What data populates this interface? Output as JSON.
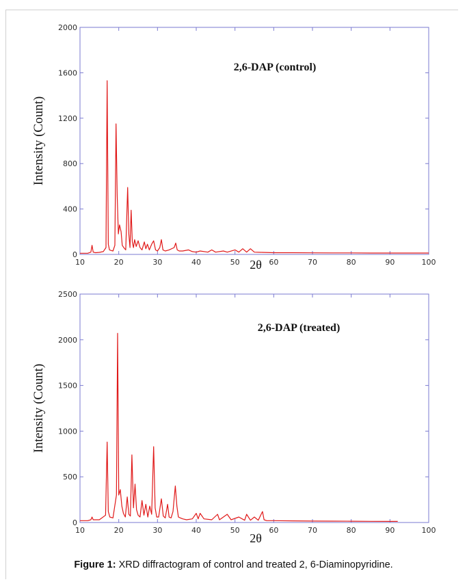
{
  "caption": {
    "label": "Figure 1:",
    "text": " XRD diffractogram of control and treated 2, 6-Diaminopyridine."
  },
  "colors": {
    "series": "#e01818",
    "axis": "#7a7ad0"
  },
  "chart_data": [
    {
      "type": "line",
      "title": "2,6-DAP (control)",
      "xlabel": "2θ",
      "ylabel": "Intensity (Count)",
      "xlim": [
        10,
        100
      ],
      "ylim": [
        0,
        2000
      ],
      "xticks": [
        10,
        20,
        30,
        40,
        50,
        60,
        70,
        80,
        90,
        100
      ],
      "yticks": [
        0,
        400,
        800,
        1200,
        1600,
        2000
      ],
      "grid": false,
      "series": [
        {
          "x": [
            10,
            12,
            12.8,
            13.1,
            13.4,
            14,
            15,
            16,
            16.7,
            17.0,
            17.3,
            17.6,
            18,
            18.5,
            19.0,
            19.3,
            19.6,
            19.9,
            20.2,
            20.6,
            20.9,
            21.3,
            21.8,
            22.3,
            22.6,
            22.9,
            23.2,
            23.5,
            23.8,
            24.1,
            24.5,
            25.0,
            25.5,
            26.0,
            26.6,
            27.0,
            27.4,
            27.9,
            28.5,
            29.0,
            29.5,
            30.0,
            30.6,
            31.0,
            31.4,
            32,
            33,
            34.3,
            34.7,
            35.1,
            35.6,
            36.5,
            38,
            39,
            40,
            41,
            43,
            44,
            45,
            47,
            48,
            50,
            51,
            52,
            53,
            54,
            55,
            57,
            60,
            65,
            70,
            75,
            80,
            85,
            90,
            95,
            100
          ],
          "y": [
            10,
            10,
            20,
            80,
            20,
            15,
            18,
            25,
            60,
            1530,
            90,
            40,
            35,
            30,
            80,
            1150,
            520,
            180,
            260,
            200,
            80,
            60,
            40,
            590,
            180,
            60,
            390,
            110,
            60,
            130,
            70,
            120,
            60,
            40,
            110,
            50,
            90,
            40,
            90,
            120,
            40,
            30,
            60,
            130,
            40,
            30,
            40,
            60,
            100,
            40,
            30,
            30,
            40,
            25,
            20,
            30,
            20,
            40,
            20,
            30,
            20,
            40,
            20,
            50,
            20,
            50,
            20,
            18,
            15,
            15,
            14,
            13,
            13,
            12,
            12,
            12,
            12
          ]
        }
      ]
    },
    {
      "type": "line",
      "title": "2,6-DAP (treated)",
      "xlabel": "2θ",
      "ylabel": "Intensity (Count)",
      "xlim": [
        10,
        100
      ],
      "ylim": [
        0,
        2500
      ],
      "xticks": [
        10,
        20,
        30,
        40,
        50,
        60,
        70,
        80,
        90,
        100
      ],
      "yticks": [
        0,
        500,
        1000,
        1500,
        2000,
        2500
      ],
      "grid": false,
      "series": [
        {
          "x": [
            10,
            12,
            12.8,
            13.1,
            13.4,
            15,
            16.6,
            17.0,
            17.3,
            17.7,
            18.5,
            19.4,
            19.7,
            20.0,
            20.4,
            20.8,
            21.2,
            21.7,
            22.2,
            22.6,
            23.0,
            23.4,
            23.8,
            24.2,
            24.6,
            25.0,
            25.5,
            26.0,
            26.5,
            27.0,
            27.5,
            28.0,
            28.5,
            29.0,
            29.4,
            29.8,
            30.3,
            31.0,
            31.5,
            32.0,
            32.6,
            33.0,
            33.5,
            34.0,
            34.6,
            35.0,
            35.4,
            35.9,
            36.5,
            37.5,
            39,
            40,
            40.5,
            41,
            42,
            44,
            45.5,
            46,
            47,
            48,
            49,
            51,
            52.5,
            53,
            54,
            55,
            56,
            57.1,
            57.5,
            58.2,
            60,
            65,
            70,
            75,
            80,
            85,
            90,
            92
          ],
          "y": [
            20,
            20,
            30,
            60,
            30,
            30,
            80,
            880,
            120,
            60,
            50,
            300,
            2070,
            300,
            360,
            180,
            100,
            60,
            280,
            90,
            70,
            740,
            160,
            420,
            140,
            80,
            60,
            240,
            80,
            200,
            60,
            180,
            90,
            830,
            160,
            60,
            60,
            260,
            70,
            50,
            200,
            60,
            50,
            120,
            400,
            180,
            60,
            50,
            40,
            30,
            40,
            100,
            40,
            100,
            40,
            30,
            90,
            30,
            60,
            90,
            30,
            60,
            25,
            90,
            25,
            60,
            25,
            120,
            30,
            20,
            20,
            18,
            16,
            15,
            14,
            13,
            12,
            12
          ]
        }
      ]
    }
  ]
}
